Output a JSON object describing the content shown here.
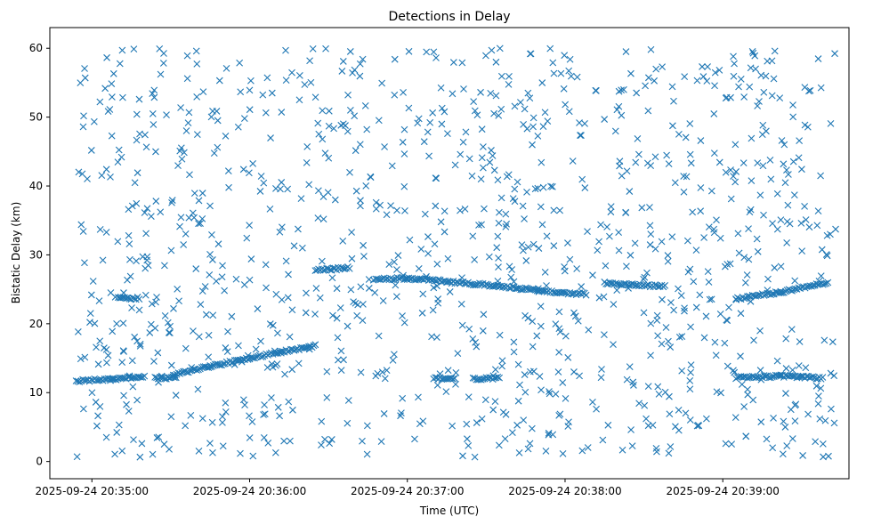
{
  "chart_data": {
    "type": "scatter",
    "title": "Detections in Delay",
    "xlabel": "Time (UTC)",
    "ylabel": "Bistatic Delay (km)",
    "marker": "x",
    "color": "#1f77b4",
    "grid": false,
    "legend": "none",
    "xlim": [
      "2025-09-24 20:34:44",
      "2025-09-24 20:39:48"
    ],
    "ylim": [
      -2.5,
      63
    ],
    "x_ticks": [
      "2025-09-24 20:35:00",
      "2025-09-24 20:36:00",
      "2025-09-24 20:37:00",
      "2025-09-24 20:38:00",
      "2025-09-24 20:39:00"
    ],
    "y_ticks": [
      0,
      10,
      20,
      30,
      40,
      50,
      60
    ],
    "tracks": [
      {
        "t": [
          "2025-09-24 20:34:54",
          "2025-09-24 20:35:08",
          "2025-09-24 20:35:20"
        ],
        "delay_km": [
          11.7,
          12.0,
          12.3
        ]
      },
      {
        "t": [
          "2025-09-24 20:35:31",
          "2025-09-24 20:35:45",
          "2025-09-24 20:36:00",
          "2025-09-24 20:36:12",
          "2025-09-24 20:36:25"
        ],
        "delay_km": [
          12.6,
          13.8,
          15.0,
          15.9,
          16.8
        ]
      },
      {
        "t": [
          "2025-09-24 20:36:25",
          "2025-09-24 20:36:38"
        ],
        "delay_km": [
          27.8,
          28.1
        ]
      },
      {
        "t": [
          "2025-09-24 20:36:48",
          "2025-09-24 20:37:00",
          "2025-09-24 20:37:15"
        ],
        "delay_km": [
          26.5,
          26.6,
          26.2
        ]
      },
      {
        "t": [
          "2025-09-24 20:37:15",
          "2025-09-24 20:37:35",
          "2025-09-24 20:37:50"
        ],
        "delay_km": [
          26.1,
          25.5,
          24.8
        ]
      },
      {
        "t": [
          "2025-09-24 20:37:50",
          "2025-09-24 20:38:08"
        ],
        "delay_km": [
          24.7,
          24.3
        ]
      },
      {
        "t": [
          "2025-09-24 20:38:15",
          "2025-09-24 20:38:38"
        ],
        "delay_km": [
          25.9,
          25.4
        ]
      },
      {
        "t": [
          "2025-09-24 20:39:05",
          "2025-09-24 20:39:22",
          "2025-09-24 20:39:40"
        ],
        "delay_km": [
          23.6,
          24.6,
          26.0
        ]
      },
      {
        "t": [
          "2025-09-24 20:39:05",
          "2025-09-24 20:39:22",
          "2025-09-24 20:39:38"
        ],
        "delay_km": [
          12.2,
          12.4,
          12.1
        ]
      },
      {
        "t": [
          "2025-09-24 20:35:10",
          "2025-09-24 20:35:18"
        ],
        "delay_km": [
          23.7,
          23.7
        ]
      },
      {
        "t": [
          "2025-09-24 20:37:10",
          "2025-09-24 20:37:18"
        ],
        "delay_km": [
          12.1,
          12.1
        ]
      },
      {
        "t": [
          "2025-09-24 20:37:25",
          "2025-09-24 20:37:35"
        ],
        "delay_km": [
          12.0,
          12.1
        ]
      },
      {
        "t": [
          "2025-09-24 20:35:24",
          "2025-09-24 20:35:32"
        ],
        "delay_km": [
          12.1,
          12.2
        ]
      }
    ],
    "noise_detections": {
      "count": 1100,
      "delay_range_km": [
        0.5,
        60
      ],
      "time_range": [
        "2025-09-24 20:34:54",
        "2025-09-24 20:39:43"
      ]
    }
  }
}
